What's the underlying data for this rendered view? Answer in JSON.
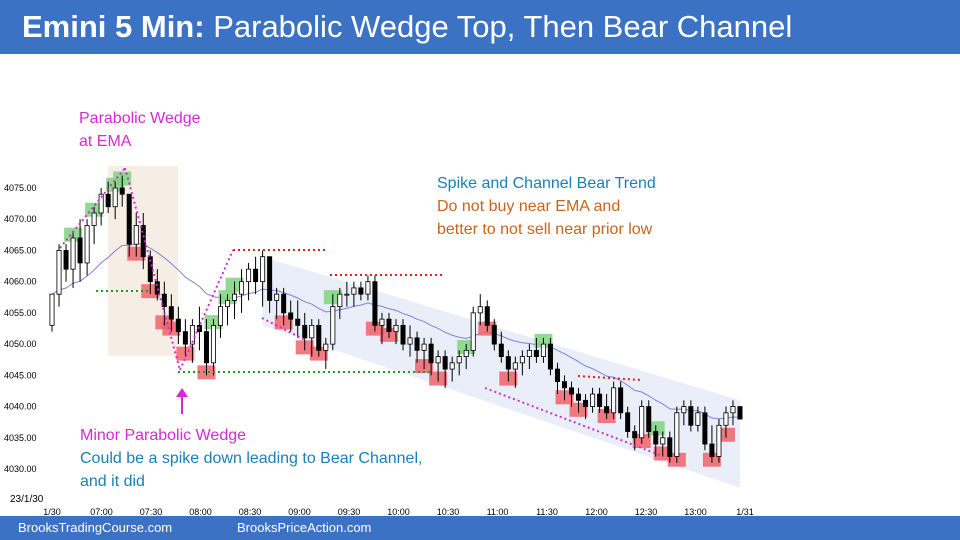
{
  "title": {
    "bold": "Emini 5 Min:",
    "rest": "Parabolic Wedge Top, Then Bear Channel"
  },
  "footer": {
    "left": "BrooksTradingCourse.com",
    "right": "BrooksPriceAction.com"
  },
  "date_label": "23/1/30",
  "annotations": {
    "parabolic_wedge": [
      "Parabolic Wedge",
      "at EMA"
    ],
    "minor_wedge": [
      "Minor Parabolic Wedge",
      "Could be a spike down leading to Bear Channel,",
      "and it did"
    ],
    "spike_channel": "Spike and Channel Bear Trend",
    "warning": [
      "Do not buy near EMA and",
      "better to not sell near prior low"
    ]
  },
  "colors": {
    "title_bg": "#3b72c4",
    "bull_highlight": "#7ed37e",
    "bear_highlight": "#f0636b",
    "ema": "#8080d8",
    "wedge_line": "#d42ad4",
    "support_line": "#1f9a1f",
    "resistance_line": "#e01f1f",
    "channel_fill": "#e3eaf8"
  },
  "chart_data": {
    "type": "candlestick",
    "y_ticks": [
      "4075.00",
      "4070.00",
      "4065.00",
      "4060.00",
      "4055.00",
      "4050.00",
      "4045.00",
      "4040.00",
      "4035.00",
      "4030.00"
    ],
    "x_ticks": [
      "1/30",
      "07:00",
      "07:30",
      "08:00",
      "08:30",
      "09:00",
      "09:30",
      "10:00",
      "10:30",
      "11:00",
      "11:30",
      "12:00",
      "12:30",
      "13:00",
      "1/31"
    ],
    "ylim": [
      4028,
      4077
    ],
    "candles": [
      [
        4053,
        4058,
        4052,
        4058
      ],
      [
        4058,
        4066,
        4056,
        4065
      ],
      [
        4065,
        4066,
        4060,
        4062
      ],
      [
        4062,
        4068,
        4059,
        4067
      ],
      [
        4067,
        4070,
        4060,
        4063
      ],
      [
        4063,
        4070,
        4061,
        4069
      ],
      [
        4069,
        4072,
        4066,
        4071
      ],
      [
        4071,
        4075,
        4069,
        4074
      ],
      [
        4074,
        4076,
        4071,
        4072
      ],
      [
        4072,
        4076,
        4070,
        4075
      ],
      [
        4075,
        4077,
        4072,
        4074
      ],
      [
        4074,
        4074,
        4064,
        4066
      ],
      [
        4066,
        4071,
        4064,
        4069
      ],
      [
        4069,
        4071,
        4062,
        4064
      ],
      [
        4064,
        4065,
        4058,
        4060
      ],
      [
        4060,
        4062,
        4057,
        4058
      ],
      [
        4058,
        4060,
        4053,
        4056
      ],
      [
        4056,
        4058,
        4052,
        4054
      ],
      [
        4054,
        4056,
        4050,
        4052
      ],
      [
        4052,
        4054,
        4048,
        4050
      ],
      [
        4050,
        4054,
        4047,
        4053
      ],
      [
        4053,
        4056,
        4049,
        4052
      ],
      [
        4052,
        4054,
        4045,
        4047
      ],
      [
        4047,
        4054,
        4045,
        4053
      ],
      [
        4053,
        4058,
        4051,
        4056
      ],
      [
        4056,
        4058,
        4053,
        4057
      ],
      [
        4057,
        4060,
        4054,
        4058
      ],
      [
        4058,
        4062,
        4055,
        4060
      ],
      [
        4060,
        4063,
        4057,
        4062
      ],
      [
        4062,
        4064,
        4058,
        4060
      ],
      [
        4060,
        4065,
        4056,
        4064
      ],
      [
        4064,
        4064,
        4055,
        4057
      ],
      [
        4057,
        4059,
        4054,
        4058
      ],
      [
        4058,
        4059,
        4053,
        4055
      ],
      [
        4055,
        4057,
        4052,
        4054
      ],
      [
        4054,
        4057,
        4051,
        4053
      ],
      [
        4053,
        4055,
        4049,
        4051
      ],
      [
        4051,
        4054,
        4048,
        4053
      ],
      [
        4053,
        4054,
        4048,
        4049
      ],
      [
        4049,
        4051,
        4046,
        4050
      ],
      [
        4050,
        4058,
        4049,
        4056
      ],
      [
        4056,
        4059,
        4054,
        4058
      ],
      [
        4058,
        4060,
        4056,
        4058
      ],
      [
        4058,
        4060,
        4056,
        4059
      ],
      [
        4059,
        4060,
        4057,
        4058
      ],
      [
        4058,
        4061,
        4057,
        4060
      ],
      [
        4060,
        4061,
        4052,
        4053
      ],
      [
        4053,
        4055,
        4050,
        4054
      ],
      [
        4054,
        4055,
        4051,
        4052
      ],
      [
        4052,
        4054,
        4050,
        4053
      ],
      [
        4053,
        4054,
        4049,
        4050
      ],
      [
        4050,
        4053,
        4048,
        4051
      ],
      [
        4051,
        4052,
        4047,
        4049
      ],
      [
        4049,
        4051,
        4046,
        4050
      ],
      [
        4050,
        4051,
        4045,
        4047
      ],
      [
        4047,
        4049,
        4044,
        4048
      ],
      [
        4048,
        4049,
        4043,
        4046
      ],
      [
        4046,
        4048,
        4044,
        4047
      ],
      [
        4047,
        4049,
        4045,
        4048
      ],
      [
        4048,
        4050,
        4046,
        4049
      ],
      [
        4049,
        4056,
        4048,
        4055
      ],
      [
        4055,
        4058,
        4053,
        4056
      ],
      [
        4056,
        4057,
        4052,
        4053
      ],
      [
        4053,
        4054,
        4049,
        4050
      ],
      [
        4050,
        4052,
        4047,
        4048
      ],
      [
        4048,
        4049,
        4044,
        4046
      ],
      [
        4046,
        4048,
        4043,
        4047
      ],
      [
        4047,
        4049,
        4045,
        4048
      ],
      [
        4048,
        4050,
        4046,
        4049
      ],
      [
        4049,
        4051,
        4047,
        4048
      ],
      [
        4048,
        4051,
        4047,
        4050
      ],
      [
        4050,
        4051,
        4045,
        4046
      ],
      [
        4046,
        4047,
        4042,
        4044
      ],
      [
        4044,
        4045,
        4041,
        4043
      ],
      [
        4043,
        4044,
        4040,
        4042
      ],
      [
        4042,
        4043,
        4039,
        4041
      ],
      [
        4041,
        4042,
        4038,
        4040
      ],
      [
        4040,
        4043,
        4039,
        4042
      ],
      [
        4042,
        4043,
        4039,
        4040
      ],
      [
        4040,
        4042,
        4038,
        4039
      ],
      [
        4039,
        4044,
        4038,
        4043
      ],
      [
        4043,
        4044,
        4038,
        4039
      ],
      [
        4039,
        4040,
        4035,
        4036
      ],
      [
        4036,
        4037,
        4033,
        4035
      ],
      [
        4035,
        4041,
        4034,
        4040
      ],
      [
        4040,
        4041,
        4035,
        4036
      ],
      [
        4036,
        4037,
        4032,
        4034
      ],
      [
        4034,
        4036,
        4032,
        4035
      ],
      [
        4035,
        4036,
        4031,
        4032
      ],
      [
        4032,
        4040,
        4031,
        4039
      ],
      [
        4039,
        4041,
        4037,
        4040
      ],
      [
        4040,
        4041,
        4036,
        4037
      ],
      [
        4037,
        4040,
        4036,
        4039
      ],
      [
        4039,
        4040,
        4033,
        4034
      ],
      [
        4034,
        4037,
        4031,
        4032
      ],
      [
        4032,
        4038,
        4031,
        4037
      ],
      [
        4037,
        4040,
        4035,
        4039
      ],
      [
        4039,
        4041,
        4037,
        4040
      ],
      [
        4040,
        4040,
        4038,
        4038
      ]
    ]
  }
}
